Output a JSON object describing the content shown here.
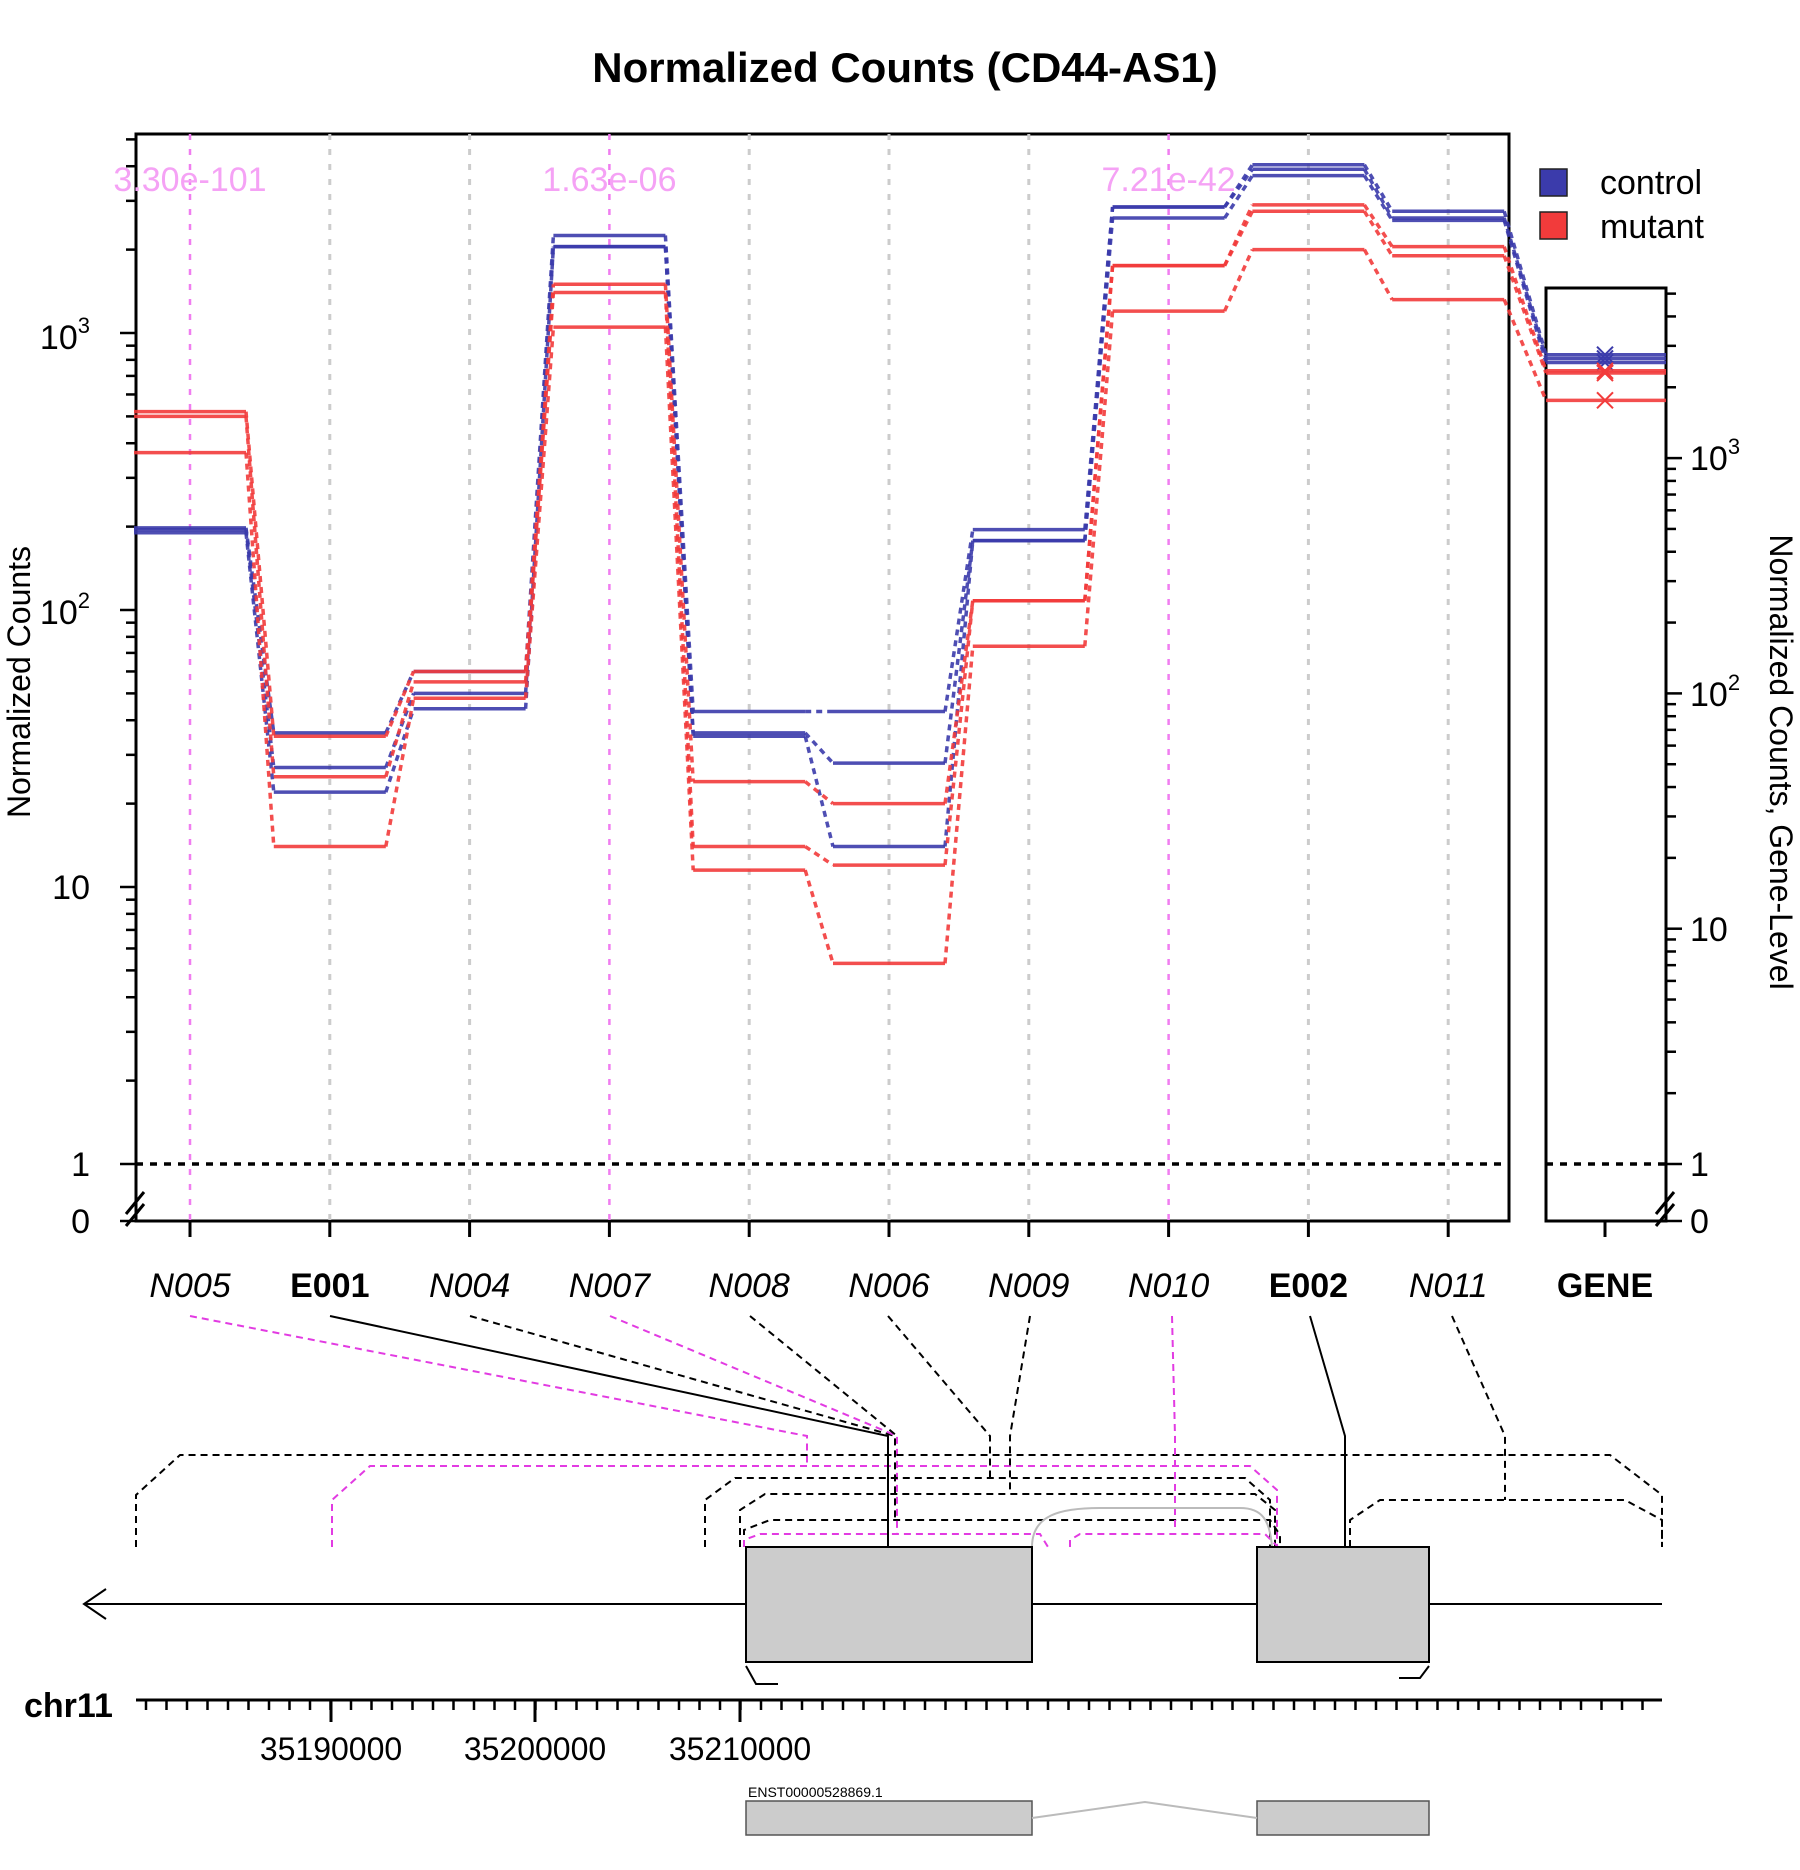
{
  "chart_data": {
    "type": "line",
    "title": "Normalized Counts (CD44-AS1)",
    "ylabel": "Normalized Counts",
    "ylabel_right": "Normalized Counts, Gene-Level",
    "yscale": "log",
    "y_ticks": [
      "0",
      "1",
      "10",
      "10^2",
      "10^3"
    ],
    "gene_y_ticks": [
      "0",
      "1",
      "10",
      "10^2",
      "10^3"
    ],
    "features": [
      "N005",
      "E001",
      "N004",
      "N007",
      "N008",
      "N006",
      "N009",
      "N010",
      "E002",
      "N011"
    ],
    "feature_styles": [
      "italic",
      "bold",
      "italic",
      "italic",
      "italic",
      "italic",
      "italic",
      "italic",
      "bold",
      "italic"
    ],
    "gene_label": "GENE",
    "significant": [
      {
        "feature": "N005",
        "pvalue": "3.30e-101"
      },
      {
        "feature": "N007",
        "pvalue": "1.63e-06"
      },
      {
        "feature": "N010",
        "pvalue": "7.21e-42"
      }
    ],
    "legend": {
      "position": "top-right"
    },
    "series": [
      {
        "name": "control",
        "color": "#3b3bab",
        "samples": [
          [
            198,
            36,
            60,
            2250,
            43,
            43,
            195,
            2850,
            4050,
            2750
          ],
          [
            195,
            27,
            50,
            2050,
            36,
            28,
            178,
            2600,
            3700,
            2550
          ],
          [
            190,
            22,
            44,
            2050,
            35,
            14,
            178,
            2850,
            3900,
            2600
          ]
        ],
        "gene": [
          2750,
          2550,
          2650
        ]
      },
      {
        "name": "mutant",
        "color": "#f23b3b",
        "samples": [
          [
            520,
            35,
            60,
            1500,
            24,
            20,
            108,
            1750,
            2900,
            2050
          ],
          [
            500,
            25,
            55,
            1400,
            14,
            12,
            108,
            1750,
            2750,
            1900
          ],
          [
            370,
            14,
            48,
            1050,
            11.5,
            5.3,
            74,
            1200,
            2000,
            1320
          ]
        ],
        "gene": [
          2350,
          2300,
          1760
        ]
      }
    ],
    "region": {
      "chromosome": "chr11",
      "coord_labels": [
        "35190000",
        "35200000",
        "35210000"
      ],
      "transcript_id": "ENST00000528869.1"
    }
  }
}
